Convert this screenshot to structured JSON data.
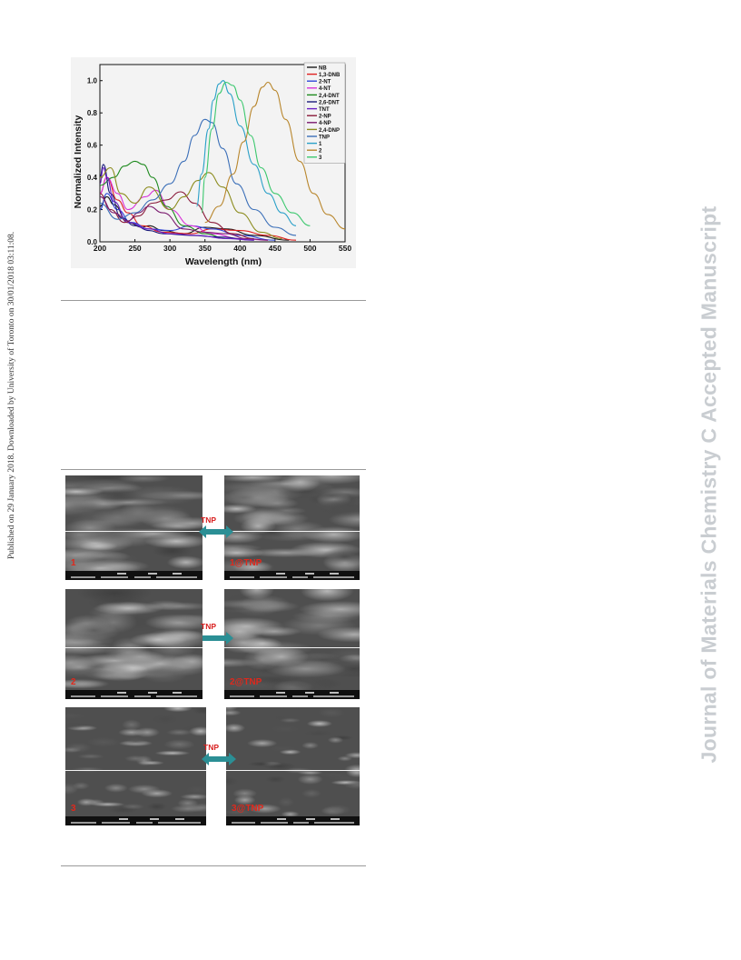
{
  "side_note": "Published on 29 January 2018. Downloaded by University of Toronto on 30/01/2018 03:11:08.",
  "watermark": "Journal of Materials Chemistry C Accepted Manuscript",
  "chart_data": {
    "type": "line",
    "title": "",
    "xlabel": "Wavelength (nm)",
    "ylabel": "Normalized Intensity",
    "xlim": [
      200,
      550
    ],
    "ylim": [
      0,
      1.1
    ],
    "x_ticks": [
      200,
      250,
      300,
      350,
      400,
      450,
      500,
      550
    ],
    "y_ticks": [
      0.0,
      0.2,
      0.4,
      0.6,
      0.8,
      1.0
    ],
    "legend_position": "top-right",
    "grid": false,
    "series": [
      {
        "name": "NB",
        "color": "#1a1a1a",
        "x": [
          200,
          210,
          220,
          240,
          260,
          270,
          290,
          320,
          350,
          380,
          420,
          470
        ],
        "y": [
          0.22,
          0.28,
          0.23,
          0.12,
          0.09,
          0.1,
          0.07,
          0.05,
          0.09,
          0.08,
          0.04,
          0.01
        ]
      },
      {
        "name": "1,3-DNB",
        "color": "#e02020",
        "x": [
          200,
          210,
          225,
          240,
          260,
          290,
          330,
          360,
          400,
          440,
          480
        ],
        "y": [
          0.3,
          0.4,
          0.26,
          0.18,
          0.1,
          0.06,
          0.05,
          0.08,
          0.07,
          0.04,
          0.01
        ]
      },
      {
        "name": "2-NT",
        "color": "#2f46d8",
        "x": [
          200,
          210,
          225,
          245,
          270,
          300,
          330,
          360,
          400,
          450
        ],
        "y": [
          0.2,
          0.3,
          0.2,
          0.12,
          0.08,
          0.07,
          0.1,
          0.08,
          0.04,
          0.01
        ]
      },
      {
        "name": "4-NT",
        "color": "#d833d8",
        "x": [
          200,
          210,
          225,
          240,
          265,
          280,
          300,
          330,
          360,
          400,
          440
        ],
        "y": [
          0.3,
          0.4,
          0.3,
          0.2,
          0.28,
          0.32,
          0.2,
          0.1,
          0.05,
          0.02,
          0.01
        ]
      },
      {
        "name": "2,4-DNT",
        "color": "#1e8a1e",
        "x": [
          200,
          220,
          235,
          250,
          262,
          275,
          295,
          320,
          350,
          380
        ],
        "y": [
          0.35,
          0.4,
          0.47,
          0.5,
          0.48,
          0.4,
          0.22,
          0.1,
          0.05,
          0.02
        ]
      },
      {
        "name": "2,6-DNT",
        "color": "#1a1a7a",
        "x": [
          200,
          205,
          215,
          230,
          250,
          270,
          290,
          330,
          370,
          420
        ],
        "y": [
          0.4,
          0.48,
          0.3,
          0.15,
          0.1,
          0.07,
          0.05,
          0.04,
          0.03,
          0.01
        ]
      },
      {
        "name": "TNT",
        "color": "#6a1fc4",
        "x": [
          200,
          205,
          210,
          220,
          240,
          270,
          300,
          340,
          380,
          420
        ],
        "y": [
          0.36,
          0.46,
          0.4,
          0.25,
          0.12,
          0.08,
          0.05,
          0.04,
          0.02,
          0.01
        ]
      },
      {
        "name": "2-NP",
        "color": "#8a1a3a",
        "x": [
          200,
          215,
          235,
          255,
          275,
          295,
          315,
          335,
          360,
          390,
          420
        ],
        "y": [
          0.3,
          0.2,
          0.12,
          0.16,
          0.24,
          0.26,
          0.31,
          0.24,
          0.12,
          0.05,
          0.02
        ]
      },
      {
        "name": "4-NP",
        "color": "#7a1a6e",
        "x": [
          200,
          220,
          240,
          255,
          270,
          290,
          320,
          350,
          380,
          410,
          440
        ],
        "y": [
          0.28,
          0.18,
          0.13,
          0.18,
          0.22,
          0.18,
          0.08,
          0.06,
          0.05,
          0.02,
          0.01
        ]
      },
      {
        "name": "2,4-DNP",
        "color": "#8c8c1e",
        "x": [
          200,
          215,
          230,
          250,
          270,
          300,
          320,
          340,
          355,
          375,
          400,
          430,
          460
        ],
        "y": [
          0.4,
          0.46,
          0.3,
          0.24,
          0.34,
          0.2,
          0.28,
          0.38,
          0.43,
          0.34,
          0.18,
          0.06,
          0.02
        ]
      },
      {
        "name": "TNP",
        "color": "#3b6fb8",
        "x": [
          200,
          225,
          250,
          275,
          300,
          320,
          335,
          350,
          360,
          375,
          395,
          420,
          450,
          480
        ],
        "y": [
          0.24,
          0.14,
          0.18,
          0.26,
          0.36,
          0.5,
          0.66,
          0.76,
          0.74,
          0.58,
          0.36,
          0.2,
          0.09,
          0.04
        ]
      },
      {
        "name": "1",
        "color": "#2aa0c8",
        "x": [
          338,
          345,
          355,
          362,
          370,
          376,
          385,
          400,
          420,
          440,
          460,
          480
        ],
        "y": [
          0.22,
          0.42,
          0.7,
          0.88,
          0.98,
          1.0,
          0.92,
          0.72,
          0.48,
          0.3,
          0.18,
          0.1
        ]
      },
      {
        "name": "2",
        "color": "#b8862c",
        "x": [
          350,
          370,
          390,
          405,
          420,
          432,
          440,
          450,
          465,
          485,
          505,
          525,
          550
        ],
        "y": [
          0.12,
          0.22,
          0.42,
          0.62,
          0.84,
          0.96,
          0.99,
          0.94,
          0.76,
          0.5,
          0.3,
          0.17,
          0.08
        ]
      },
      {
        "name": "3",
        "color": "#3cc86e",
        "x": [
          345,
          350,
          360,
          370,
          380,
          390,
          400,
          415,
          430,
          450,
          475,
          500
        ],
        "y": [
          0.18,
          0.4,
          0.7,
          0.92,
          0.99,
          0.97,
          0.88,
          0.66,
          0.46,
          0.3,
          0.18,
          0.1
        ]
      }
    ]
  },
  "sem_panels": [
    {
      "id": "1",
      "before_label": "1",
      "after_label": "1@TNP",
      "arrow_label": "TNP"
    },
    {
      "id": "2",
      "before_label": "2",
      "after_label": "2@TNP",
      "arrow_label": "TNP"
    },
    {
      "id": "3",
      "before_label": "3",
      "after_label": "3@TNP",
      "arrow_label": "TNP"
    }
  ],
  "colors": {
    "arrow": "#2b8f95",
    "label_red": "#e0281c"
  }
}
